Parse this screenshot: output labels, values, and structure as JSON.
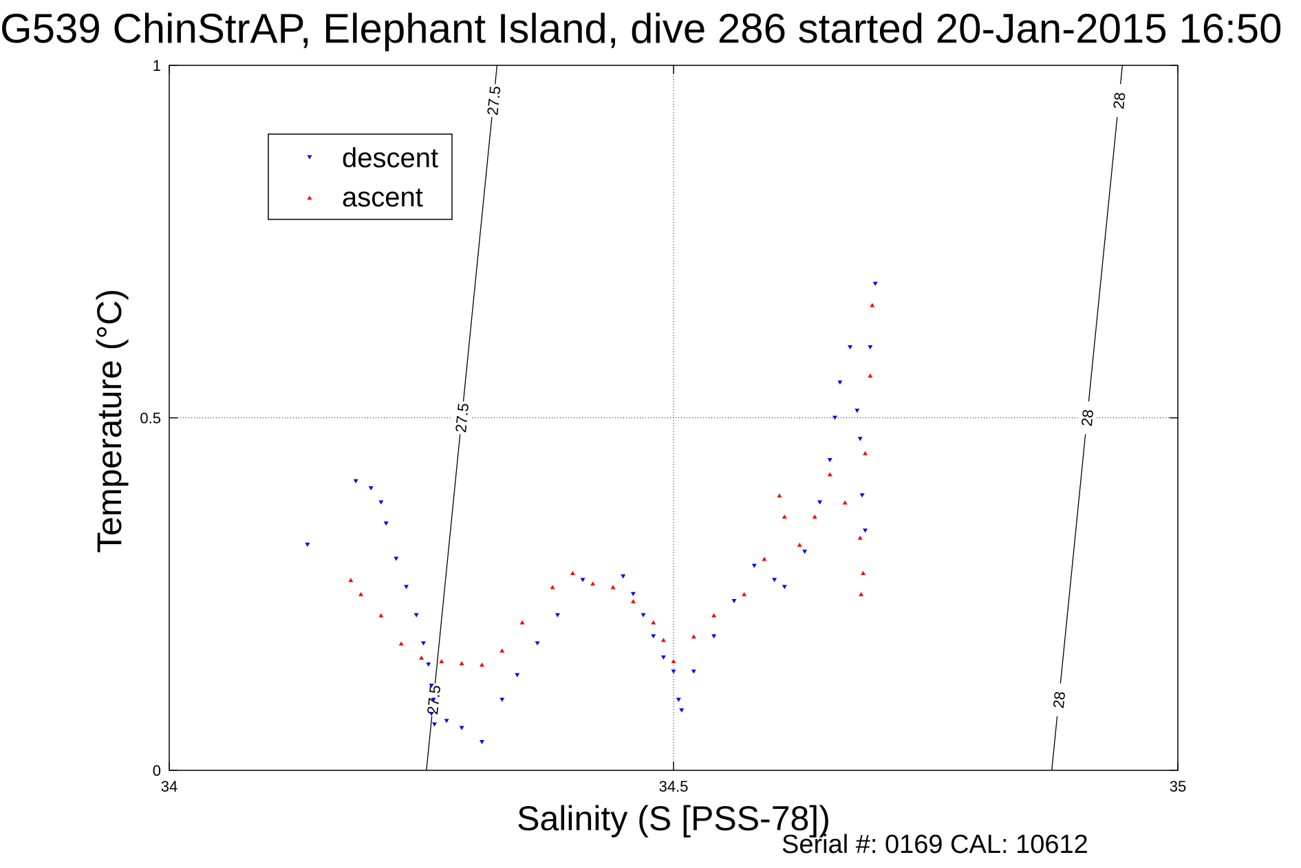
{
  "chart_data": {
    "type": "scatter",
    "title": "G539 ChinStrAP, Elephant Island, dive 286 started 20-Jan-2015 16:50",
    "xlabel": "Salinity (S [PSS-78])",
    "ylabel": "Temperature (°C)",
    "xlim": [
      34,
      35
    ],
    "ylim": [
      0,
      1
    ],
    "xticks": [
      34,
      34.5,
      35
    ],
    "yticks": [
      0,
      0.5,
      1
    ],
    "xtick_labels": [
      "34",
      "34.5",
      "35"
    ],
    "ytick_labels": [
      "0",
      "0.5",
      "1"
    ],
    "grid": "dotted at tick positions",
    "legend": {
      "placement": "top-left",
      "entries": [
        "descent",
        "ascent"
      ]
    },
    "colors": {
      "descent": "#0000ff",
      "ascent": "#ff0000",
      "contour": "#000000"
    },
    "markers": {
      "descent": "down-triangle",
      "ascent": "up-triangle"
    },
    "contours": [
      {
        "label": "27.5",
        "points": [
          [
            34.255,
            0.0
          ],
          [
            34.325,
            1.0
          ]
        ]
      },
      {
        "label": "28",
        "points": [
          [
            34.875,
            0.0
          ],
          [
            34.945,
            1.0
          ]
        ]
      }
    ],
    "series": [
      {
        "name": "descent",
        "x": [
          34.137,
          34.185,
          34.2,
          34.21,
          34.215,
          34.225,
          34.235,
          34.245,
          34.252,
          34.257,
          34.26,
          34.262,
          34.26,
          34.263,
          34.275,
          34.29,
          34.31,
          34.33,
          34.345,
          34.365,
          34.385,
          34.41,
          34.45,
          34.46,
          34.47,
          34.48,
          34.49,
          34.5,
          34.505,
          34.508,
          34.52,
          34.54,
          34.56,
          34.58,
          34.6,
          34.61,
          34.63,
          34.645,
          34.655,
          34.66,
          34.665,
          34.675,
          34.682,
          34.685,
          34.687,
          34.69,
          34.695,
          34.7
        ],
        "y": [
          0.32,
          0.41,
          0.4,
          0.38,
          0.35,
          0.3,
          0.26,
          0.22,
          0.18,
          0.15,
          0.12,
          0.1,
          0.08,
          0.065,
          0.07,
          0.06,
          0.04,
          0.1,
          0.135,
          0.18,
          0.22,
          0.27,
          0.275,
          0.25,
          0.22,
          0.19,
          0.16,
          0.14,
          0.1,
          0.085,
          0.14,
          0.19,
          0.24,
          0.29,
          0.27,
          0.26,
          0.31,
          0.38,
          0.44,
          0.5,
          0.55,
          0.6,
          0.51,
          0.47,
          0.39,
          0.34,
          0.6,
          0.69
        ]
      },
      {
        "name": "ascent",
        "x": [
          34.18,
          34.19,
          34.21,
          34.23,
          34.25,
          34.27,
          34.29,
          34.31,
          34.33,
          34.35,
          34.38,
          34.4,
          34.42,
          34.44,
          34.46,
          34.48,
          34.49,
          34.5,
          34.52,
          34.54,
          34.57,
          34.59,
          34.605,
          34.61,
          34.625,
          34.64,
          34.655,
          34.67,
          34.685,
          34.688,
          34.686,
          34.69,
          34.695,
          34.697
        ],
        "y": [
          0.27,
          0.25,
          0.22,
          0.18,
          0.16,
          0.155,
          0.152,
          0.15,
          0.17,
          0.21,
          0.26,
          0.28,
          0.265,
          0.26,
          0.24,
          0.21,
          0.185,
          0.155,
          0.19,
          0.22,
          0.25,
          0.3,
          0.39,
          0.36,
          0.32,
          0.36,
          0.42,
          0.38,
          0.33,
          0.28,
          0.25,
          0.45,
          0.56,
          0.66
        ]
      }
    ]
  },
  "footer": {
    "serial_cal": "Serial #: 0169 CAL: 10612"
  }
}
